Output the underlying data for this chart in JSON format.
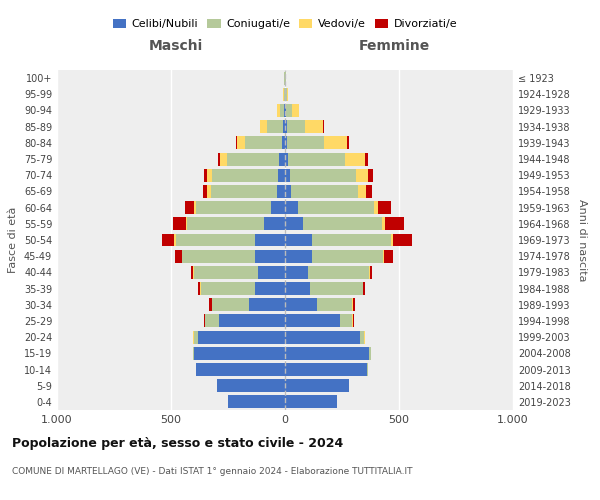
{
  "age_groups": [
    "100+",
    "95-99",
    "90-94",
    "85-89",
    "80-84",
    "75-79",
    "70-74",
    "65-69",
    "60-64",
    "55-59",
    "50-54",
    "45-49",
    "40-44",
    "35-39",
    "30-34",
    "25-29",
    "20-24",
    "15-19",
    "10-14",
    "5-9",
    "0-4"
  ],
  "birth_years": [
    "≤ 1923",
    "1924-1928",
    "1929-1933",
    "1934-1938",
    "1939-1943",
    "1944-1948",
    "1949-1953",
    "1954-1958",
    "1959-1963",
    "1964-1968",
    "1969-1973",
    "1974-1978",
    "1979-1983",
    "1984-1988",
    "1989-1993",
    "1994-1998",
    "1999-2003",
    "2004-2008",
    "2009-2013",
    "2014-2018",
    "2019-2023"
  ],
  "maschi_celibi": [
    2,
    2,
    4,
    10,
    15,
    25,
    30,
    35,
    60,
    90,
    130,
    130,
    120,
    130,
    160,
    290,
    380,
    400,
    390,
    300,
    250
  ],
  "maschi_coniugati": [
    2,
    4,
    20,
    70,
    160,
    230,
    290,
    290,
    330,
    340,
    350,
    320,
    280,
    240,
    160,
    60,
    20,
    5,
    2,
    0,
    0
  ],
  "maschi_vedovi": [
    0,
    2,
    10,
    30,
    35,
    30,
    20,
    15,
    10,
    5,
    5,
    2,
    2,
    2,
    2,
    2,
    2,
    0,
    0,
    0,
    0
  ],
  "maschi_divorziati": [
    0,
    0,
    0,
    0,
    5,
    10,
    15,
    20,
    40,
    55,
    55,
    30,
    10,
    10,
    10,
    5,
    2,
    0,
    0,
    0,
    0
  ],
  "femmine_nubili": [
    2,
    2,
    5,
    8,
    10,
    15,
    20,
    25,
    55,
    80,
    120,
    120,
    100,
    110,
    140,
    240,
    330,
    370,
    360,
    280,
    230
  ],
  "femmine_coniugate": [
    2,
    5,
    25,
    80,
    160,
    250,
    290,
    295,
    335,
    345,
    345,
    310,
    270,
    230,
    155,
    55,
    18,
    5,
    2,
    0,
    0
  ],
  "femmine_vedove": [
    0,
    5,
    30,
    80,
    100,
    85,
    55,
    35,
    20,
    15,
    10,
    5,
    2,
    2,
    2,
    2,
    2,
    0,
    0,
    0,
    0
  ],
  "femmine_divorziate": [
    0,
    0,
    2,
    5,
    10,
    15,
    20,
    25,
    55,
    80,
    80,
    40,
    10,
    10,
    10,
    5,
    2,
    0,
    0,
    0,
    0
  ],
  "colors": {
    "celibi": "#4472C4",
    "coniugati": "#B5C99A",
    "vedovi": "#FFD966",
    "divorziati": "#C00000"
  },
  "title1": "Popolazione per età, sesso e stato civile - 2024",
  "title2": "COMUNE DI MARTELLAGO (VE) - Dati ISTAT 1° gennaio 2024 - Elaborazione TUTTITALIA.IT",
  "xlabel_left": "Maschi",
  "xlabel_right": "Femmine",
  "ylabel_left": "Fasce di età",
  "ylabel_right": "Anni di nascita",
  "legend_labels": [
    "Celibi/Nubili",
    "Coniugati/e",
    "Vedovi/e",
    "Divorziati/e"
  ],
  "xlim": 1000,
  "background": "#ffffff",
  "plot_bg": "#eeeeee"
}
